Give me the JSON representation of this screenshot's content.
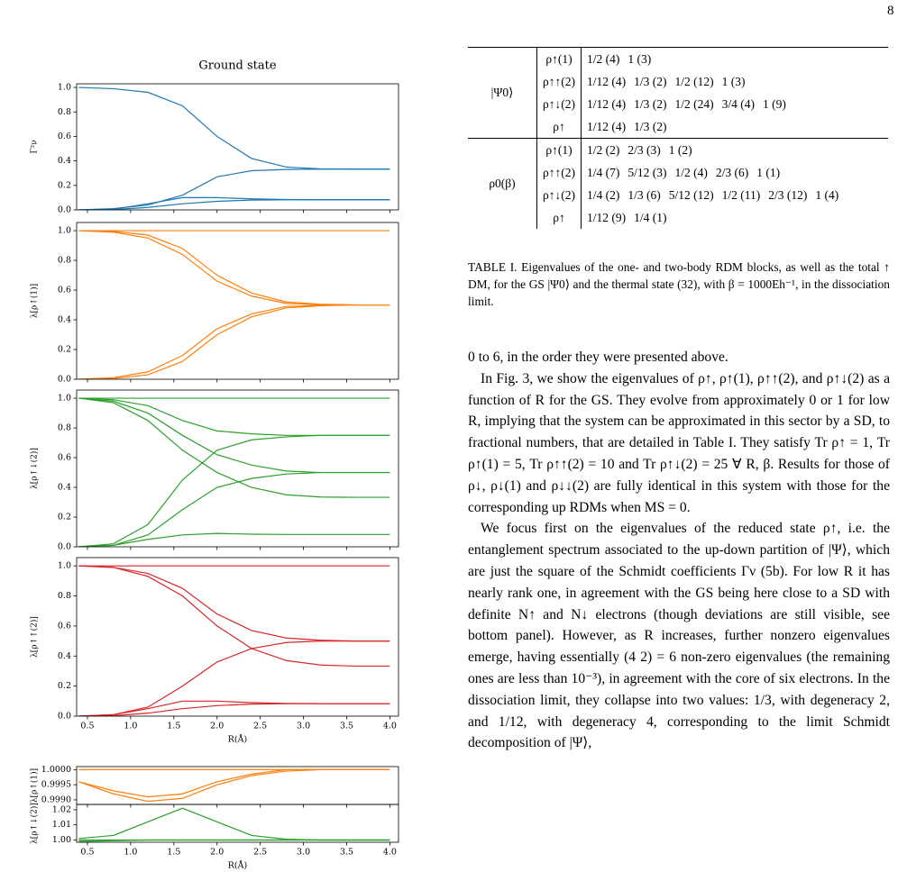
{
  "page_number": "8",
  "chart_data": [
    {
      "type": "line",
      "title": "Ground state",
      "ylabel": "Γ²ν",
      "x": [
        0.4,
        0.8,
        1.2,
        1.6,
        2.0,
        2.4,
        2.8,
        3.2,
        3.6,
        4.0
      ],
      "xlim": [
        0.375,
        4.1
      ],
      "ylim": [
        0,
        1.03
      ],
      "xticks": [
        0.5,
        1,
        1.5,
        2,
        2.5,
        3,
        3.5,
        4
      ],
      "yticks": [
        {
          "value": 0,
          "label": "0.0"
        },
        {
          "value": 0.2,
          "label": "0.2"
        },
        {
          "value": 0.4,
          "label": "0.4"
        },
        {
          "value": 0.6,
          "label": "0.6"
        },
        {
          "value": 0.8,
          "label": "0.8"
        },
        {
          "value": 1,
          "label": "1.0"
        }
      ],
      "series": [
        {
          "color": "#1f77b4",
          "values": [
            1.0,
            0.99,
            0.96,
            0.85,
            0.6,
            0.42,
            0.35,
            0.335,
            0.333,
            0.333
          ]
        },
        {
          "color": "#1f77b4",
          "values": [
            0,
            0.01,
            0.04,
            0.12,
            0.27,
            0.32,
            0.33,
            0.333,
            0.333,
            0.333
          ]
        },
        {
          "color": "#1f77b4",
          "values": [
            0,
            0.005,
            0.05,
            0.1,
            0.1,
            0.09,
            0.085,
            0.083,
            0.083,
            0.083
          ]
        },
        {
          "color": "#1f77b4",
          "values": [
            0,
            0.002,
            0.02,
            0.05,
            0.07,
            0.08,
            0.083,
            0.083,
            0.083,
            0.083
          ]
        }
      ]
    },
    {
      "type": "line",
      "ylabel": "λ[ρ↑(1)]",
      "x": [
        0.4,
        0.8,
        1.2,
        1.6,
        2.0,
        2.4,
        2.8,
        3.2,
        3.6,
        4.0
      ],
      "xlim": [
        0.375,
        4.1
      ],
      "ylim": [
        0,
        1.055
      ],
      "xticks": [
        0.5,
        1,
        1.5,
        2,
        2.5,
        3,
        3.5,
        4
      ],
      "yticks": [
        {
          "value": 0,
          "label": "0.0"
        },
        {
          "value": 0.2,
          "label": "0.2"
        },
        {
          "value": 0.4,
          "label": "0.4"
        },
        {
          "value": 0.6,
          "label": "0.6"
        },
        {
          "value": 0.8,
          "label": "0.8"
        },
        {
          "value": 1,
          "label": "1.0"
        }
      ],
      "series": [
        {
          "color": "#ff7f0e",
          "values": [
            1,
            1,
            1,
            1,
            1,
            1,
            1,
            1,
            1,
            1
          ]
        },
        {
          "color": "#ff7f0e",
          "values": [
            1.0,
            0.995,
            0.97,
            0.88,
            0.7,
            0.58,
            0.52,
            0.505,
            0.5,
            0.5
          ]
        },
        {
          "color": "#ff7f0e",
          "values": [
            1.0,
            0.99,
            0.95,
            0.84,
            0.66,
            0.56,
            0.51,
            0.502,
            0.5,
            0.5
          ]
        },
        {
          "color": "#ff7f0e",
          "values": [
            0,
            0.005,
            0.03,
            0.12,
            0.3,
            0.42,
            0.48,
            0.495,
            0.5,
            0.5
          ]
        },
        {
          "color": "#ff7f0e",
          "values": [
            0,
            0.01,
            0.05,
            0.16,
            0.34,
            0.44,
            0.49,
            0.498,
            0.5,
            0.5
          ]
        }
      ]
    },
    {
      "type": "line",
      "ylabel": "λ[ρ↑↓(2)]",
      "x": [
        0.4,
        0.8,
        1.2,
        1.6,
        2.0,
        2.4,
        2.8,
        3.2,
        3.6,
        4.0
      ],
      "xlim": [
        0.375,
        4.1
      ],
      "ylim": [
        0,
        1.055
      ],
      "xticks": [
        0.5,
        1,
        1.5,
        2,
        2.5,
        3,
        3.5,
        4
      ],
      "yticks": [
        {
          "value": 0,
          "label": "0.0"
        },
        {
          "value": 0.2,
          "label": "0.2"
        },
        {
          "value": 0.4,
          "label": "0.4"
        },
        {
          "value": 0.6,
          "label": "0.6"
        },
        {
          "value": 0.8,
          "label": "0.8"
        },
        {
          "value": 1,
          "label": "1.0"
        }
      ],
      "series": [
        {
          "color": "#2ca02c",
          "values": [
            1,
            1,
            1,
            1,
            1,
            1,
            1,
            1,
            1,
            1
          ]
        },
        {
          "color": "#2ca02c",
          "values": [
            1,
            0.99,
            0.95,
            0.85,
            0.78,
            0.76,
            0.75,
            0.75,
            0.75,
            0.75
          ]
        },
        {
          "color": "#2ca02c",
          "values": [
            1,
            0.98,
            0.9,
            0.75,
            0.62,
            0.55,
            0.51,
            0.5,
            0.5,
            0.5
          ]
        },
        {
          "color": "#2ca02c",
          "values": [
            1,
            0.97,
            0.85,
            0.65,
            0.5,
            0.4,
            0.35,
            0.335,
            0.333,
            0.333
          ]
        },
        {
          "color": "#2ca02c",
          "values": [
            0,
            0.01,
            0.08,
            0.25,
            0.4,
            0.46,
            0.49,
            0.5,
            0.5,
            0.5
          ]
        },
        {
          "color": "#2ca02c",
          "values": [
            0,
            0.02,
            0.15,
            0.45,
            0.65,
            0.72,
            0.74,
            0.75,
            0.75,
            0.75
          ]
        },
        {
          "color": "#2ca02c",
          "values": [
            0,
            0.01,
            0.05,
            0.08,
            0.09,
            0.085,
            0.083,
            0.083,
            0.083,
            0.083
          ]
        }
      ]
    },
    {
      "type": "line",
      "ylabel": "λ[ρ↑↑(2)]",
      "xlabel": "R(Å)",
      "x": [
        0.4,
        0.8,
        1.2,
        1.6,
        2.0,
        2.4,
        2.8,
        3.2,
        3.6,
        4.0
      ],
      "xlim": [
        0.375,
        4.1
      ],
      "ylim": [
        0,
        1.055
      ],
      "xticks": [
        {
          "value": 0.5,
          "label": "0.5"
        },
        {
          "value": 1,
          "label": "1.0"
        },
        {
          "value": 1.5,
          "label": "1.5"
        },
        {
          "value": 2,
          "label": "2.0"
        },
        {
          "value": 2.5,
          "label": "2.5"
        },
        {
          "value": 3,
          "label": "3.0"
        },
        {
          "value": 3.5,
          "label": "3.5"
        },
        {
          "value": 4,
          "label": "4.0"
        }
      ],
      "yticks": [
        {
          "value": 0,
          "label": "0.0"
        },
        {
          "value": 0.2,
          "label": "0.2"
        },
        {
          "value": 0.4,
          "label": "0.4"
        },
        {
          "value": 0.6,
          "label": "0.6"
        },
        {
          "value": 0.8,
          "label": "0.8"
        },
        {
          "value": 1,
          "label": "1.0"
        }
      ],
      "series": [
        {
          "color": "#d62728",
          "values": [
            1,
            1,
            1,
            1,
            1,
            1,
            1,
            1,
            1,
            1
          ]
        },
        {
          "color": "#d62728",
          "values": [
            1,
            0.99,
            0.95,
            0.85,
            0.68,
            0.57,
            0.52,
            0.505,
            0.5,
            0.5
          ]
        },
        {
          "color": "#d62728",
          "values": [
            1,
            0.99,
            0.93,
            0.8,
            0.6,
            0.45,
            0.37,
            0.34,
            0.333,
            0.333
          ]
        },
        {
          "color": "#d62728",
          "values": [
            0,
            0.01,
            0.06,
            0.2,
            0.36,
            0.45,
            0.49,
            0.5,
            0.5,
            0.5
          ]
        },
        {
          "color": "#d62728",
          "values": [
            0,
            0.01,
            0.05,
            0.1,
            0.1,
            0.09,
            0.085,
            0.083,
            0.083,
            0.083
          ]
        },
        {
          "color": "#d62728",
          "values": [
            0,
            0.003,
            0.02,
            0.05,
            0.07,
            0.08,
            0.083,
            0.083,
            0.083,
            0.083
          ]
        }
      ]
    },
    {
      "type": "line",
      "ylabel": "λ[ρ↑(1)]",
      "x": [
        0.4,
        0.8,
        1.2,
        1.6,
        2.0,
        2.4,
        2.8,
        3.2,
        3.6,
        4.0
      ],
      "xlim": [
        0.375,
        4.1
      ],
      "ylim": [
        0.99885,
        1.0001
      ],
      "xticks": [
        0.5,
        1,
        1.5,
        2,
        2.5,
        3,
        3.5,
        4
      ],
      "yticks": [
        {
          "value": 0.999,
          "label": "0.9990"
        },
        {
          "value": 0.9995,
          "label": "0.9995"
        },
        {
          "value": 1,
          "label": "1.0000"
        }
      ],
      "series": [
        {
          "color": "#ff7f0e",
          "values": [
            1,
            1,
            1,
            1,
            1,
            1,
            1,
            1,
            1,
            1
          ]
        },
        {
          "color": "#ff7f0e",
          "values": [
            0.9996,
            0.9992,
            0.99895,
            0.99905,
            0.9995,
            0.9998,
            0.99995,
            1,
            1,
            1
          ]
        },
        {
          "color": "#ff7f0e",
          "values": [
            0.9996,
            0.9993,
            0.9991,
            0.9992,
            0.9996,
            0.99985,
            1,
            1,
            1,
            1
          ]
        }
      ]
    },
    {
      "type": "line",
      "ylabel": "λ[ρ↑↓(2)]",
      "xlabel": "R(Å)",
      "x": [
        0.4,
        0.8,
        1.2,
        1.6,
        2.0,
        2.4,
        2.8,
        3.2,
        3.6,
        4.0
      ],
      "xlim": [
        0.375,
        4.1
      ],
      "ylim": [
        0.9985,
        1.0235
      ],
      "xticks": [
        {
          "value": 0.5,
          "label": "0.5"
        },
        {
          "value": 1,
          "label": "1.0"
        },
        {
          "value": 1.5,
          "label": "1.5"
        },
        {
          "value": 2,
          "label": "2.0"
        },
        {
          "value": 2.5,
          "label": "2.5"
        },
        {
          "value": 3,
          "label": "3.0"
        },
        {
          "value": 3.5,
          "label": "3.5"
        },
        {
          "value": 4,
          "label": "4.0"
        }
      ],
      "yticks": [
        {
          "value": 1,
          "label": "1.00"
        },
        {
          "value": 1.01,
          "label": "1.01"
        },
        {
          "value": 1.02,
          "label": "1.02"
        }
      ],
      "series": [
        {
          "color": "#2ca02c",
          "values": [
            1.001,
            1.003,
            1.012,
            1.021,
            1.012,
            1.003,
            1.0005,
            1,
            1,
            1
          ]
        },
        {
          "color": "#2ca02c",
          "values": [
            1,
            1,
            1,
            1,
            1,
            1,
            1,
            1,
            1,
            1
          ]
        },
        {
          "color": "#2ca02c",
          "values": [
            0.999,
            0.9995,
            1,
            1,
            1,
            1,
            1,
            1,
            1,
            1
          ]
        }
      ]
    }
  ],
  "table": {
    "groups": [
      {
        "state": "|Ψ0⟩",
        "rows": [
          {
            "rdm": "ρ↑(1)",
            "eigenvalues": [
              "1/2 (4)",
              "1 (3)"
            ]
          },
          {
            "rdm": "ρ↑↑(2)",
            "eigenvalues": [
              "1/12 (4)",
              "1/3 (2)",
              "1/2 (12)",
              "1 (3)"
            ]
          },
          {
            "rdm": "ρ↑↓(2)",
            "eigenvalues": [
              "1/12 (4)",
              "1/3 (2)",
              "1/2 (24)",
              "3/4 (4)",
              "1 (9)"
            ]
          },
          {
            "rdm": "ρ↑",
            "eigenvalues": [
              "1/12 (4)",
              "1/3 (2)"
            ]
          }
        ]
      },
      {
        "state": "ρ0(β)",
        "rows": [
          {
            "rdm": "ρ↑(1)",
            "eigenvalues": [
              "1/2 (2)",
              "2/3 (3)",
              "1 (2)"
            ]
          },
          {
            "rdm": "ρ↑↑(2)",
            "eigenvalues": [
              "1/4 (7)",
              "5/12 (3)",
              "1/2 (4)",
              "2/3 (6)",
              "1 (1)"
            ]
          },
          {
            "rdm": "ρ↑↓(2)",
            "eigenvalues": [
              "1/4 (2)",
              "1/3 (6)",
              "5/12 (12)",
              "1/2 (11)",
              "2/3 (12)",
              "1 (4)"
            ]
          },
          {
            "rdm": "ρ↑",
            "eigenvalues": [
              "1/12 (9)",
              "1/4 (1)"
            ]
          }
        ]
      }
    ],
    "caption": "TABLE I. Eigenvalues of the one- and two-body RDM blocks, as well as the total ↑ DM, for the GS |Ψ0⟩ and the thermal state (32), with β = 1000Eh⁻¹, in the dissociation limit."
  },
  "body": [
    "0 to 6, in the order they were presented above.",
    "In Fig. 3, we show the eigenvalues of ρ↑, ρ↑(1), ρ↑↑(2), and ρ↑↓(2) as a function of R for the GS. They evolve from approximately 0 or 1 for low R, implying that the system can be approximated in this sector by a SD, to fractional numbers, that are detailed in Table I. They satisfy Tr ρ↑ = 1, Tr ρ↑(1) = 5, Tr ρ↑↑(2) = 10 and Tr ρ↑↓(2) = 25 ∀ R, β. Results for those of ρ↓, ρ↓(1) and ρ↓↓(2) are fully identical in this system with those for the corresponding up RDMs when MS = 0.",
    "We focus first on the eigenvalues of the reduced state ρ↑, i.e. the entanglement spectrum associated to the up-down partition of |Ψ⟩, which are just the square of the Schmidt coefficients Γν (5b). For low R it has nearly rank one, in agreement with the GS being here close to a SD with definite N↑ and N↓ electrons (though deviations are still visible, see bottom panel). However, as R increases, further nonzero eigenvalues emerge, having essentially (4 2) = 6 non-zero eigenvalues (the remaining ones are less than 10⁻³), in agreement with the core of six electrons. In the dissociation limit, they collapse into two values: 1/3, with degeneracy 2, and 1/12, with degeneracy 4, corresponding to the limit Schmidt decomposition of |Ψ⟩,"
  ]
}
